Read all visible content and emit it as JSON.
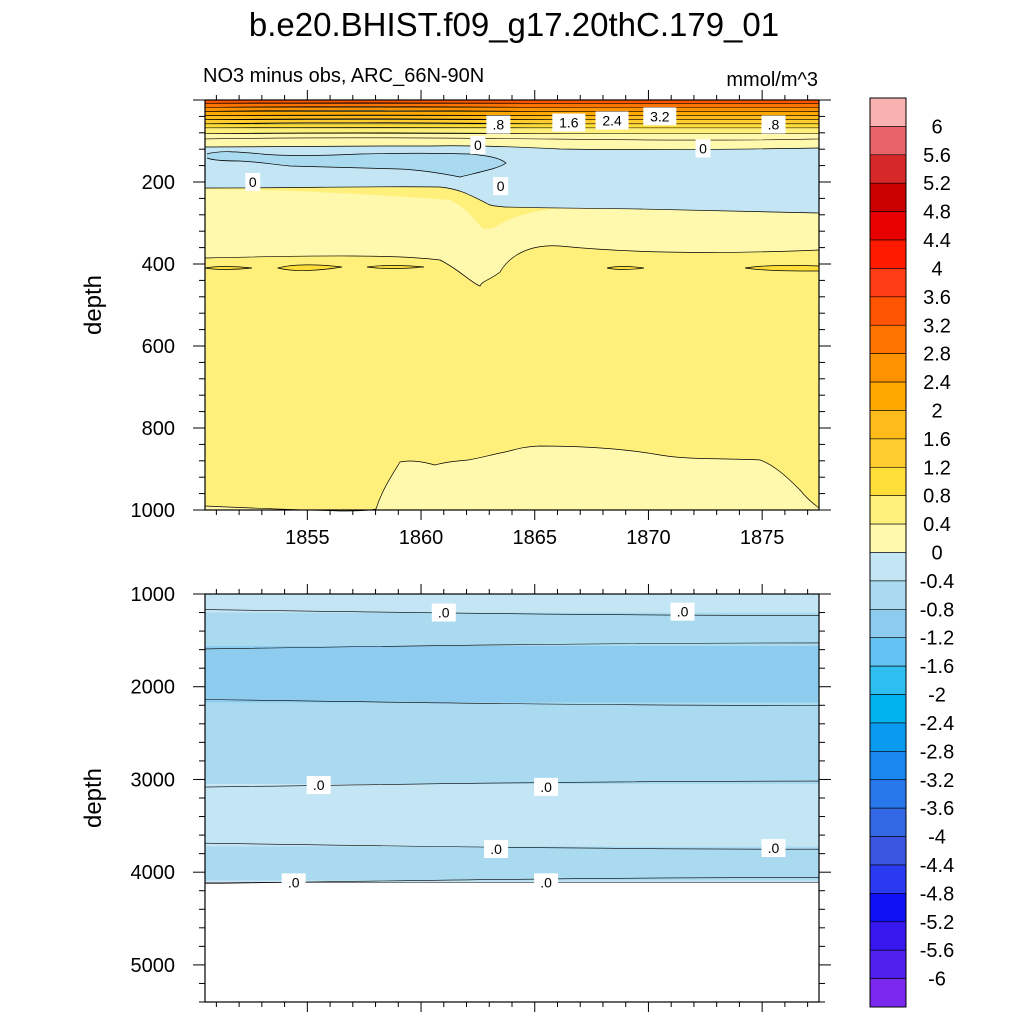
{
  "title": "b.e20.BHIST.f09_g17.20thC.179_01",
  "chart_data": {
    "type": "contour",
    "title": "b.e20.BHIST.f09_g17.20thC.179_01",
    "units": "mmol/m^3",
    "colorbar": {
      "boundaries": [
        "6",
        "5.6",
        "5.2",
        "4.8",
        "4.4",
        "4",
        "3.6",
        "3.2",
        "2.8",
        "2.4",
        "2",
        "1.6",
        "1.2",
        "0.8",
        "0.4",
        "0",
        "-0.4",
        "-0.8",
        "-1.2",
        "-1.6",
        "-2",
        "-2.4",
        "-2.8",
        "-3.2",
        "-3.6",
        "-4",
        "-4.4",
        "-4.8",
        "-5.2",
        "-5.6",
        "-6"
      ],
      "colors": [
        "#f9b1b1",
        "#e8636a",
        "#d62828",
        "#c80000",
        "#e60000",
        "#ff1a00",
        "#ff3c14",
        "#ff5500",
        "#ff7300",
        "#ff9200",
        "#ffa800",
        "#ffbb1a",
        "#ffcd30",
        "#ffde3a",
        "#fff07c",
        "#fff9ad",
        "#c4e6f4",
        "#a9daf0",
        "#8dccef",
        "#65c3f4",
        "#2fbef0",
        "#00b2ee",
        "#0a9af0",
        "#1a86f0",
        "#2878ec",
        "#3469e6",
        "#3a56e0",
        "#2a3af0",
        "#1010f5",
        "#3618ef",
        "#5020ee",
        "#7a28ee"
      ]
    },
    "panels": [
      {
        "subtitle": "NO3 minus obs, ARC_66N-90N",
        "ylabel": "depth",
        "y_reversed": true,
        "ylim": [
          0,
          1000
        ],
        "xlim": [
          1850.5,
          1877.5
        ],
        "x_ticks": [
          1855,
          1860,
          1865,
          1870,
          1875
        ],
        "y_ticks": [
          200,
          400,
          600,
          800,
          1000
        ],
        "contour_labels": [
          {
            "text": ".8",
            "x": 1863.4,
            "y": 60
          },
          {
            "text": "1.6",
            "x": 1866.5,
            "y": 55
          },
          {
            "text": "2.4",
            "x": 1868.4,
            "y": 50
          },
          {
            "text": "3.2",
            "x": 1870.5,
            "y": 40
          },
          {
            "text": ".8",
            "x": 1875.5,
            "y": 60
          },
          {
            "text": "0",
            "x": 1862.5,
            "y": 110
          },
          {
            "text": "0",
            "x": 1872.4,
            "y": 118
          },
          {
            "text": "0",
            "x": 1852.6,
            "y": 200
          },
          {
            "text": "0",
            "x": 1863.5,
            "y": 210
          }
        ],
        "surface_bands": [
          {
            "top": 0,
            "bottom": 8,
            "range": "3.6 to 4"
          },
          {
            "top": 8,
            "bottom": 18,
            "range": "3.2 to 3.6"
          },
          {
            "top": 18,
            "bottom": 28,
            "range": "2.8 to 3.2"
          },
          {
            "top": 28,
            "bottom": 38,
            "range": "2.4 to 2.8"
          },
          {
            "top": 38,
            "bottom": 48,
            "range": "2 to 2.4"
          },
          {
            "top": 48,
            "bottom": 58,
            "range": "1.6 to 2"
          },
          {
            "top": 58,
            "bottom": 68,
            "range": "1.2 to 1.6"
          },
          {
            "top": 68,
            "bottom": 82,
            "range": "0.8 to 1.2"
          },
          {
            "top": 82,
            "bottom": 95,
            "range": "0.4 to 0.8"
          }
        ]
      },
      {
        "subtitle": "",
        "ylabel": "depth",
        "y_reversed": true,
        "ylim": [
          1000,
          5400
        ],
        "xlim": [
          1850.5,
          1877.5
        ],
        "x_ticks": [
          1855,
          1860,
          1865,
          1870,
          1875
        ],
        "y_ticks": [
          1000,
          2000,
          3000,
          4000,
          5000
        ],
        "contour_labels": [
          {
            "text": ".0",
            "x": 1861.0,
            "y": 1200
          },
          {
            "text": ".0",
            "x": 1871.5,
            "y": 1190
          },
          {
            "text": ".0",
            "x": 1855.5,
            "y": 3060
          },
          {
            "text": ".0",
            "x": 1865.5,
            "y": 3080
          },
          {
            "text": ".0",
            "x": 1863.3,
            "y": 3750
          },
          {
            "text": ".0",
            "x": 1875.5,
            "y": 3740
          },
          {
            "text": ".0",
            "x": 1854.4,
            "y": 4110
          },
          {
            "text": ".0",
            "x": 1865.5,
            "y": 4110
          }
        ],
        "bands": [
          {
            "top": 1000,
            "bottom": 1200,
            "range": "0 to 0.4"
          },
          {
            "top": 1200,
            "bottom": 1560,
            "range": "-0.4 to 0"
          },
          {
            "top": 1560,
            "bottom": 2170,
            "range": "-0.8 to -0.4"
          },
          {
            "top": 2170,
            "bottom": 3050,
            "range": "-0.4 to 0"
          },
          {
            "top": 3050,
            "bottom": 3720,
            "range": "0 to 0.4"
          },
          {
            "top": 3720,
            "bottom": 4090,
            "range": "-0.4 to 0"
          },
          {
            "top": 4090,
            "bottom": 4110,
            "range": "0 to 0.4"
          }
        ],
        "no_data_below": 4110
      }
    ]
  }
}
